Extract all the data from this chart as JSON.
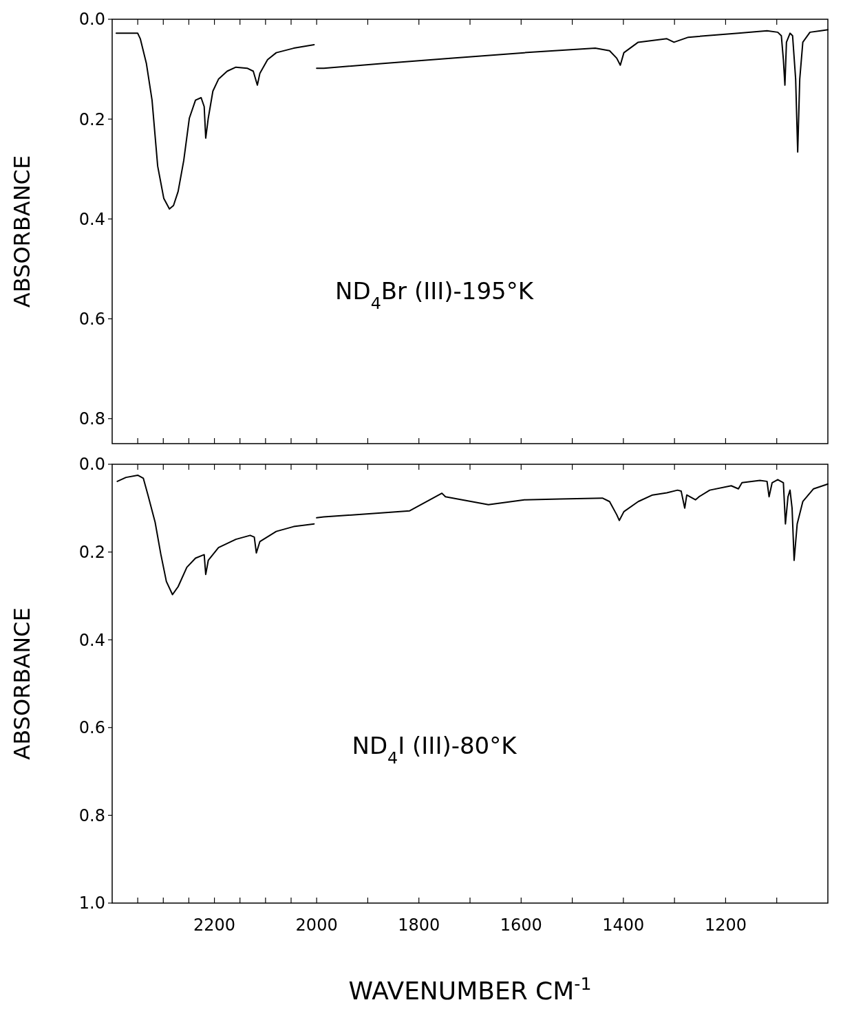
{
  "chart_data": [
    {
      "type": "line",
      "ylabel": "ABSORBANCE",
      "annotations": [
        "ND$_{4}$Br (III)-195°K"
      ],
      "tick_labels": "y",
      "xlim": [
        2400,
        1000
      ],
      "xticks": [
        {
          "value": 2350,
          "label": null
        },
        {
          "value": 2300,
          "label": null
        },
        {
          "value": 2250,
          "label": null
        },
        2200,
        {
          "value": 2150,
          "label": null
        },
        {
          "value": 2100,
          "label": null
        },
        {
          "value": 2050,
          "label": null
        },
        2000,
        {
          "value": 1900,
          "label": null
        },
        1800,
        {
          "value": 1700,
          "label": null
        },
        1600,
        {
          "value": 1500,
          "label": null
        },
        1400,
        {
          "value": 1300,
          "label": null
        },
        1200,
        {
          "value": 1100,
          "label": null
        }
      ],
      "ylim": [
        0.85,
        0.0
      ],
      "yticks": [
        {
          "value": 0.0,
          "label": "0.0"
        },
        {
          "value": 0.2,
          "label": "0.2"
        },
        {
          "value": 0.4,
          "label": "0.4"
        },
        {
          "value": 0.6,
          "label": "0.6"
        },
        {
          "value": 0.8,
          "label": "0.8"
        }
      ],
      "series": [
        {
          "color": "#000000",
          "x": [
            2392,
            2350,
            2345,
            2333,
            2322,
            2311,
            2299,
            2288,
            2280,
            2271,
            2260,
            2249,
            2237,
            2226,
            2220,
            2217,
            2212,
            2203,
            2192,
            2175,
            2158,
            2136,
            2124,
            2116,
            2111,
            2096,
            2079,
            2045,
            2005
          ],
          "values": [
            0.028,
            0.028,
            0.039,
            0.089,
            0.162,
            0.294,
            0.359,
            0.38,
            0.373,
            0.345,
            0.283,
            0.198,
            0.162,
            0.157,
            0.175,
            0.238,
            0.198,
            0.144,
            0.12,
            0.104,
            0.096,
            0.098,
            0.104,
            0.132,
            0.108,
            0.081,
            0.067,
            0.058,
            0.051
          ]
        },
        {
          "color": "#000000",
          "x": [
            2000,
            1986,
            1874,
            1734,
            1594,
            1455,
            1427,
            1413,
            1406,
            1399,
            1371,
            1315,
            1301,
            1273,
            1175,
            1119,
            1098,
            1091,
            1087,
            1084,
            1081,
            1074,
            1069,
            1063,
            1059,
            1055,
            1049,
            1035,
            1014,
            1000
          ],
          "values": [
            0.098,
            0.098,
            0.089,
            0.078,
            0.067,
            0.058,
            0.063,
            0.078,
            0.092,
            0.067,
            0.046,
            0.039,
            0.046,
            0.036,
            0.028,
            0.023,
            0.026,
            0.033,
            0.081,
            0.132,
            0.046,
            0.028,
            0.033,
            0.12,
            0.266,
            0.12,
            0.046,
            0.026,
            0.023,
            0.021
          ]
        }
      ]
    },
    {
      "type": "line",
      "ylabel": "ABSORBANCE",
      "xlabel": "WAVENUMBER  CM$^{-1}$",
      "annotations": [
        "ND$_{4}$I (III)-80°K"
      ],
      "xlim": [
        2400,
        1000
      ],
      "xticks": [
        {
          "value": 2350,
          "label": null
        },
        {
          "value": 2300,
          "label": null
        },
        {
          "value": 2250,
          "label": null
        },
        2200,
        {
          "value": 2150,
          "label": null
        },
        {
          "value": 2100,
          "label": null
        },
        {
          "value": 2050,
          "label": null
        },
        2000,
        {
          "value": 1900,
          "label": null
        },
        1800,
        {
          "value": 1700,
          "label": null
        },
        1600,
        {
          "value": 1500,
          "label": null
        },
        1400,
        {
          "value": 1300,
          "label": null
        },
        1200,
        {
          "value": 1100,
          "label": null
        }
      ],
      "ylim": [
        1.0,
        0.0
      ],
      "yticks": [
        {
          "value": 0.0,
          "label": "0.0"
        },
        {
          "value": 0.2,
          "label": "0.2"
        },
        {
          "value": 0.4,
          "label": "0.4"
        },
        {
          "value": 0.6,
          "label": "0.6"
        },
        {
          "value": 0.8,
          "label": "0.8"
        },
        {
          "value": 1.0,
          "label": "1.0"
        }
      ],
      "series": [
        {
          "color": "#000000",
          "x": [
            2390,
            2373,
            2350,
            2339,
            2330,
            2316,
            2305,
            2294,
            2282,
            2271,
            2254,
            2237,
            2220,
            2217,
            2212,
            2192,
            2158,
            2130,
            2122,
            2118,
            2111,
            2079,
            2045,
            2005
          ],
          "values": [
            0.039,
            0.03,
            0.025,
            0.032,
            0.07,
            0.132,
            0.204,
            0.267,
            0.297,
            0.279,
            0.235,
            0.214,
            0.206,
            0.251,
            0.219,
            0.19,
            0.171,
            0.162,
            0.166,
            0.202,
            0.176,
            0.153,
            0.142,
            0.136
          ]
        },
        {
          "color": "#000000",
          "x": [
            2000,
            1986,
            1874,
            1818,
            1755,
            1748,
            1664,
            1594,
            1524,
            1441,
            1427,
            1413,
            1408,
            1399,
            1371,
            1343,
            1315,
            1294,
            1287,
            1280,
            1276,
            1259,
            1252,
            1231,
            1189,
            1175,
            1168,
            1133,
            1119,
            1115,
            1109,
            1098,
            1087,
            1083,
            1078,
            1074,
            1070,
            1066,
            1060,
            1049,
            1028,
            1000
          ],
          "values": [
            0.122,
            0.12,
            0.111,
            0.106,
            0.066,
            0.074,
            0.092,
            0.081,
            0.079,
            0.077,
            0.085,
            0.115,
            0.128,
            0.108,
            0.085,
            0.07,
            0.065,
            0.059,
            0.061,
            0.1,
            0.07,
            0.081,
            0.074,
            0.059,
            0.049,
            0.056,
            0.042,
            0.037,
            0.039,
            0.074,
            0.042,
            0.035,
            0.042,
            0.136,
            0.074,
            0.059,
            0.1,
            0.219,
            0.136,
            0.085,
            0.056,
            0.045
          ]
        }
      ]
    }
  ]
}
